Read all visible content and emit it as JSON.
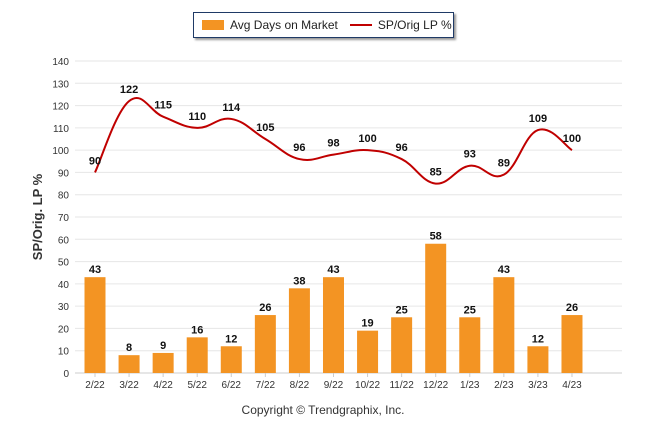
{
  "legend": {
    "bar_label": "Avg Days on Market",
    "line_label": "SP/Orig LP %"
  },
  "copyright": "Copyright © Trendgraphix, Inc.",
  "colors": {
    "bar": "#f39423",
    "line": "#c00000",
    "grid": "#e6e6e6"
  },
  "chart_data": {
    "type": "bar",
    "ylabel": "SP/Orig. LP %",
    "ylim": [
      0,
      140
    ],
    "yticks": [
      0,
      10,
      20,
      30,
      40,
      50,
      60,
      70,
      80,
      90,
      100,
      110,
      120,
      130,
      140
    ],
    "grid": true,
    "legend_position": "top",
    "categories": [
      "2/22",
      "3/22",
      "4/22",
      "5/22",
      "6/22",
      "7/22",
      "8/22",
      "9/22",
      "10/22",
      "11/22",
      "12/22",
      "1/23",
      "2/23",
      "3/23",
      "4/23"
    ],
    "series": [
      {
        "name": "Avg Days on Market",
        "type": "bar",
        "values": [
          43,
          8,
          9,
          16,
          12,
          26,
          38,
          43,
          19,
          25,
          58,
          25,
          43,
          12,
          26
        ]
      },
      {
        "name": "SP/Orig LP %",
        "type": "line",
        "values": [
          90,
          122,
          115,
          110,
          114,
          105,
          96,
          98,
          100,
          96,
          85,
          93,
          89,
          109,
          100
        ]
      }
    ]
  }
}
